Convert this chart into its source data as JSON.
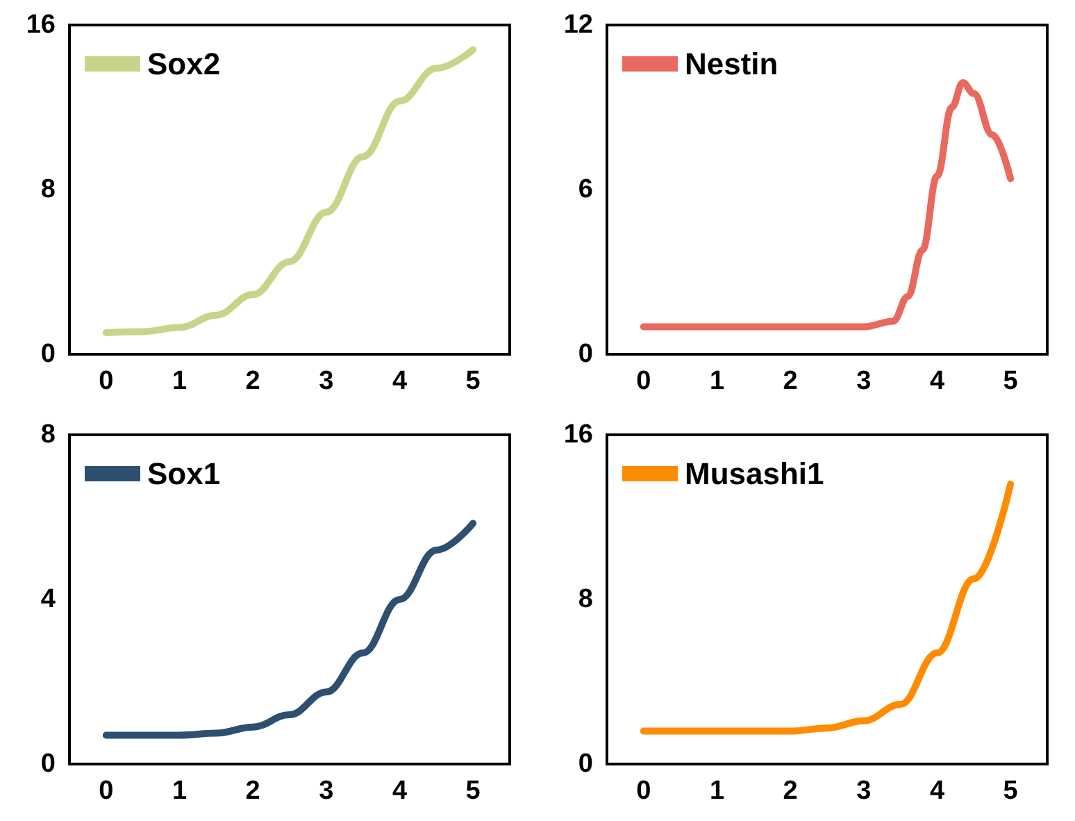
{
  "chart_data": [
    {
      "type": "line",
      "legend": "top left",
      "grid": false,
      "marker": "none",
      "xlim": [
        -0.5,
        5.5
      ],
      "xticks": [
        0,
        1,
        2,
        3,
        4,
        5
      ],
      "ylim": [
        0,
        16
      ],
      "yticks": [
        0,
        8,
        16
      ],
      "series": [
        {
          "name": "Sox2",
          "color": "#c8d48a",
          "x": [
            0,
            0.5,
            1,
            1.5,
            2,
            2.5,
            3,
            3.5,
            4,
            4.5,
            5
          ],
          "values": [
            1.05,
            1.1,
            1.3,
            1.9,
            2.9,
            4.5,
            6.9,
            9.6,
            12.3,
            13.9,
            14.8
          ]
        }
      ]
    },
    {
      "type": "line",
      "legend": "top left",
      "grid": false,
      "marker": "none",
      "xlim": [
        -0.5,
        5.5
      ],
      "xticks": [
        0,
        1,
        2,
        3,
        4,
        5
      ],
      "ylim": [
        0,
        12
      ],
      "yticks": [
        0,
        6,
        12
      ],
      "series": [
        {
          "name": "Nestin",
          "color": "#e8695e",
          "x": [
            0,
            1,
            2,
            3,
            3.4,
            3.6,
            3.8,
            4,
            4.2,
            4.35,
            4.5,
            4.75,
            5
          ],
          "values": [
            1,
            1,
            1,
            1,
            1.2,
            2.1,
            3.8,
            6.5,
            9,
            9.9,
            9.5,
            8,
            6.4
          ]
        }
      ]
    },
    {
      "type": "line",
      "legend": "top left",
      "grid": false,
      "marker": "none",
      "xlim": [
        -0.5,
        5.5
      ],
      "xticks": [
        0,
        1,
        2,
        3,
        4,
        5
      ],
      "ylim": [
        0,
        8
      ],
      "yticks": [
        0,
        4,
        8
      ],
      "series": [
        {
          "name": "Sox1",
          "color": "#2e5070",
          "x": [
            0,
            1,
            1.5,
            2,
            2.5,
            3,
            3.5,
            4,
            4.5,
            5
          ],
          "values": [
            0.7,
            0.7,
            0.75,
            0.9,
            1.2,
            1.75,
            2.7,
            4,
            5.2,
            5.85
          ]
        }
      ]
    },
    {
      "type": "line",
      "legend": "top left",
      "grid": false,
      "marker": "none",
      "xlim": [
        -0.5,
        5.5
      ],
      "xticks": [
        0,
        1,
        2,
        3,
        4,
        5
      ],
      "ylim": [
        0,
        16
      ],
      "yticks": [
        0,
        8,
        16
      ],
      "series": [
        {
          "name": "Musashi1",
          "color": "#ff8c00",
          "x": [
            0,
            1,
            2,
            2.5,
            3,
            3.5,
            4,
            4.5,
            5
          ],
          "values": [
            1.6,
            1.6,
            1.6,
            1.75,
            2.1,
            2.9,
            5.4,
            9,
            13.6
          ]
        }
      ]
    }
  ]
}
